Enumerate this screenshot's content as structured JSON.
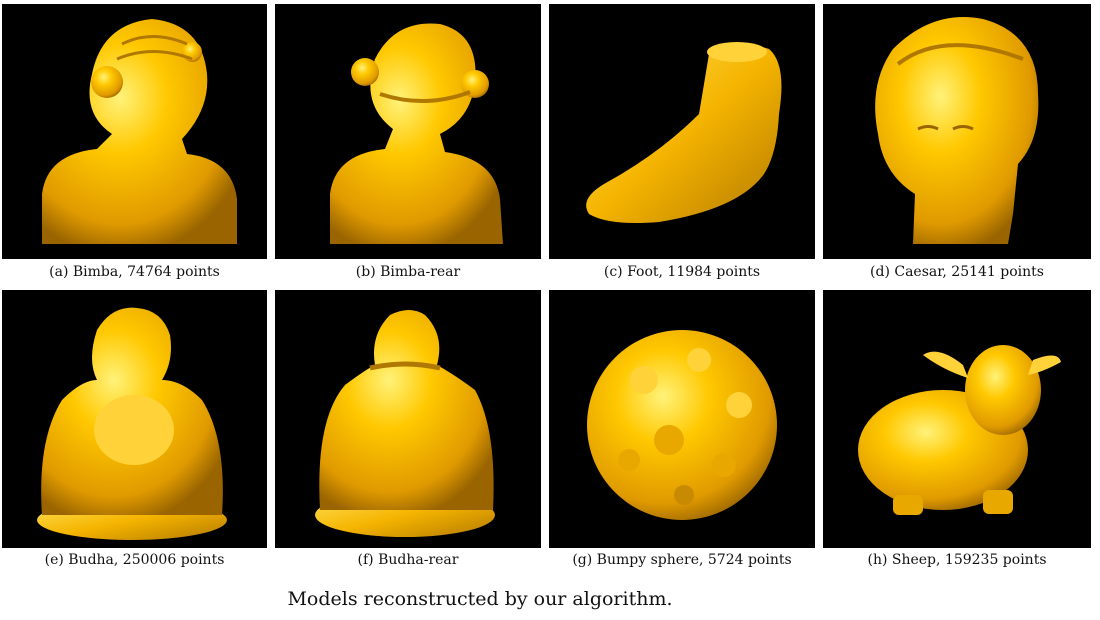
{
  "figures": [
    {
      "caption": "(a) Bimba, 74764 points",
      "model": "bimba-bust-front"
    },
    {
      "caption": "(b) Bimba-rear",
      "model": "bimba-bust-rear"
    },
    {
      "caption": "(c) Foot, 11984 points",
      "model": "foot"
    },
    {
      "caption": "(d) Caesar, 25141 points",
      "model": "caesar-head"
    },
    {
      "caption": "(e) Budha, 250006 points",
      "model": "budha-front"
    },
    {
      "caption": "(f) Budha-rear",
      "model": "budha-rear"
    },
    {
      "caption": "(g) Bumpy sphere, 5724 points",
      "model": "bumpy-sphere"
    },
    {
      "caption": "(h) Sheep, 159235 points",
      "model": "sheep"
    }
  ],
  "main_caption": "Models reconstructed by our algorithm.",
  "colors": {
    "background": "#000000",
    "model_fill": "#f5b400",
    "model_highlight": "#ffe066",
    "model_shadow": "#b07800"
  }
}
